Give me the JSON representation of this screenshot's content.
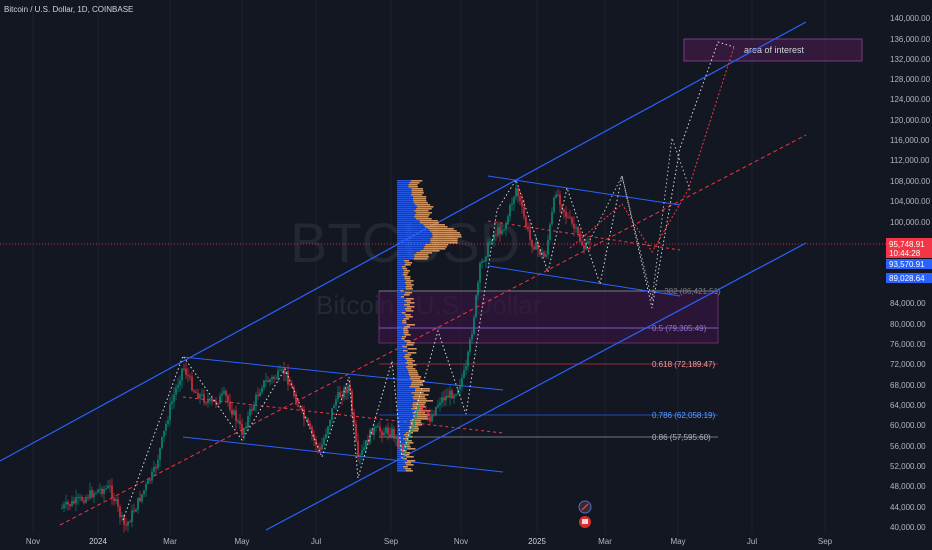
{
  "header": {
    "symbol_title": "Bitcoin / U.S. Dollar, 1D, COINBASE"
  },
  "watermark": {
    "ticker": "BTCUSD",
    "name": "Bitcoin / U.S. Dollar"
  },
  "price_axis": {
    "ticks": [
      "140,000.00",
      "136,000.00",
      "132,000.00",
      "128,000.00",
      "124,000.00",
      "120,000.00",
      "116,000.00",
      "112,000.00",
      "108,000.00",
      "104,000.00",
      "100,000.00",
      "84,000.00",
      "80,000.00",
      "76,000.00",
      "72,000.00",
      "68,000.00",
      "64,000.00",
      "60,000.00",
      "56,000.00",
      "52,000.00",
      "48,000.00",
      "44,000.00",
      "40,000.00"
    ],
    "labels": {
      "current_price": "95,748.91",
      "countdown": "10:44:28",
      "level_blue": "93,570.91",
      "level_blue2": "89,028.64"
    }
  },
  "time_axis": {
    "ticks": [
      "Nov",
      "2024",
      "Mar",
      "May",
      "Jul",
      "Sep",
      "Nov",
      "2025",
      "Mar",
      "May",
      "Jul",
      "Sep"
    ]
  },
  "annotations": {
    "area_of_interest": "area of interest",
    "fib_382": ".382 (86,421.51)",
    "fib_5": "0.5 (79,305.49)",
    "fib_618": "0.618 (72,189.47)",
    "fib_786": "0.786 (62,058.19)",
    "fib_86": "0.86 (57,595.60)"
  },
  "colors": {
    "background": "#131722",
    "channel_blue": "#2962ff",
    "candle_up": "#089981",
    "candle_down": "#f23645",
    "projection": "#ffffff",
    "midline": "#f23645",
    "zone": "#6a1b6a",
    "volume_profile_blue": "#2962ff",
    "volume_profile_orange": "#f0a868"
  },
  "icons": [
    "pencil-icon",
    "flag-icon"
  ]
}
